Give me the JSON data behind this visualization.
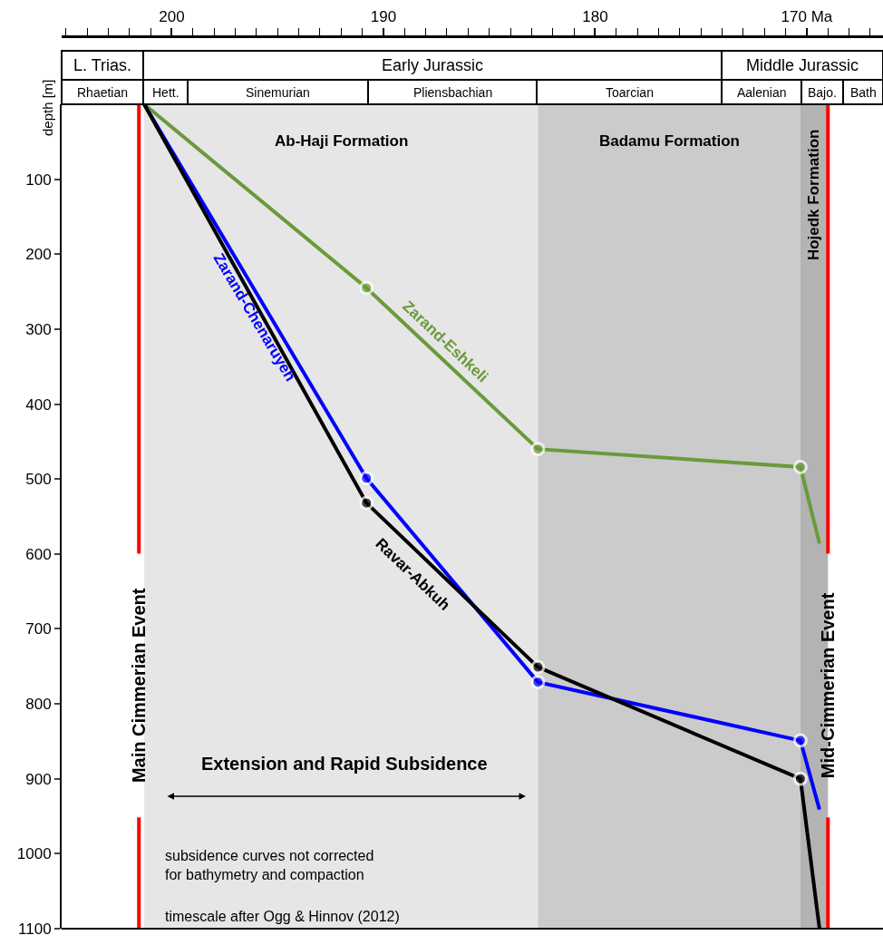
{
  "chart_data": {
    "type": "line",
    "ylabel": "depth [m]",
    "x": [
      201.3,
      190.8,
      182.7,
      170.3,
      169.4
    ],
    "series": [
      {
        "name": "Zarand-Eshkeli",
        "color": "#6a9a3a",
        "values": [
          0,
          245,
          460,
          484,
          586
        ]
      },
      {
        "name": "Zarand-Chenaruyeh",
        "color": "#0000ff",
        "values": [
          0,
          499,
          771,
          849,
          941
        ]
      },
      {
        "name": "Ravar-Abkuh",
        "color": "#000000",
        "values": [
          0,
          532,
          751,
          900,
          1100
        ]
      }
    ],
    "xlim": [
      205.2,
      166.4
    ],
    "xticks": [
      200,
      190,
      180,
      {
        "value": 170,
        "label": "170 Ma"
      }
    ],
    "ylim": [
      1100,
      0
    ],
    "yticks": [
      100,
      200,
      300,
      400,
      500,
      600,
      700,
      800,
      900,
      1000,
      1100
    ],
    "grid": false,
    "legend": false,
    "marker": "circle",
    "line_style": "solid",
    "bands": [
      {
        "axis": "x",
        "from": 201.3,
        "to": 182.7,
        "label": "Ab-Haji Formation",
        "color": "#e6e6e6"
      },
      {
        "axis": "x",
        "from": 182.7,
        "to": 170.3,
        "label": "Badamu Formation",
        "color": "#cbcbcb"
      },
      {
        "axis": "x",
        "from": 170.3,
        "to": 169.0,
        "label": "Hojedk Formation",
        "color": "#b3b3b3"
      }
    ],
    "ref_lines": [
      {
        "axis": "x",
        "value": 201.55,
        "label": "Main Cimmerian Event",
        "color": "#ff0000"
      },
      {
        "axis": "x",
        "value": 169.0,
        "label": "Mid-Cimmerian Event",
        "color": "#ff0000"
      }
    ],
    "annotations": [
      "Extension and Rapid Subsidence",
      "subsidence curves not corrected\nfor bathymetry and compaction",
      "timescale after Ogg & Hinnov (2012)",
      "L. Trias.",
      "Early Jurassic",
      "Middle Jurassic",
      "Rhaetian",
      "Hett.",
      "Sinemurian",
      "Pliensbachian",
      "Toarcian",
      "Aalenian",
      "Bajo.",
      "Bath"
    ]
  }
}
